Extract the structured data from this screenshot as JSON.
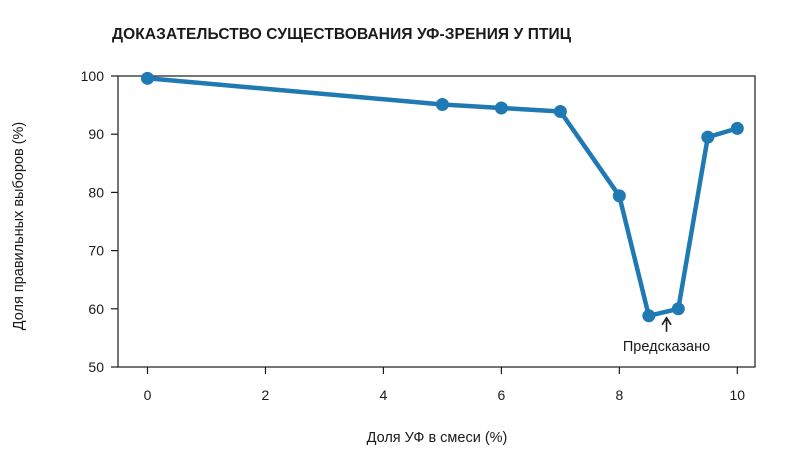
{
  "chart_data": {
    "type": "line",
    "title": "ДОКАЗАТЕЛЬСТВО СУЩЕСТВОВАНИЯ УФ-ЗРЕНИЯ У ПТИЦ",
    "xlabel": "Доля УФ в смеси (%)",
    "ylabel": "Доля правильных выборов (%)",
    "xlim": [
      -0.5,
      10.3
    ],
    "ylim": [
      50,
      100
    ],
    "xticks": [
      0,
      2,
      4,
      6,
      8,
      10
    ],
    "yticks": [
      50,
      60,
      70,
      80,
      90,
      100
    ],
    "grid": false,
    "color": "#1f79b3",
    "series": [
      {
        "x": [
          0,
          5,
          6,
          7,
          8,
          8.5,
          9,
          9.5,
          10
        ],
        "y": [
          99.6,
          95.1,
          94.5,
          93.9,
          79.4,
          58.8,
          60,
          89.5,
          91
        ]
      }
    ],
    "annotations": [
      {
        "text": "Предсказано",
        "x": 8.8,
        "y": 60
      }
    ]
  }
}
